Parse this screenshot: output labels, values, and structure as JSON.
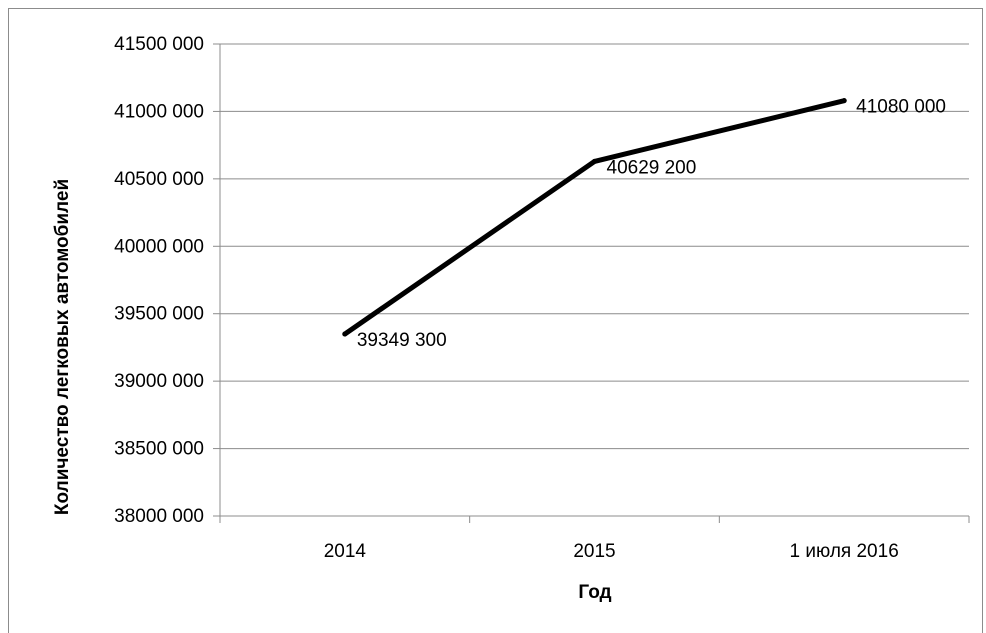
{
  "chart_data": {
    "type": "line",
    "title": "",
    "categories": [
      "2014",
      "2015",
      "1 июля 2016"
    ],
    "series": [
      {
        "values": [
          39349300,
          40629200,
          41080000
        ],
        "data_labels": [
          "39349 300",
          "40629 200",
          "41080 000"
        ]
      }
    ],
    "xlabel": "Год",
    "ylabel": "Количество легковых автомобилей",
    "ylim": [
      38000000,
      41500000
    ],
    "y_ticks": [
      38000000,
      38500000,
      39000000,
      39500000,
      40000000,
      40500000,
      41000000,
      41500000
    ],
    "y_tick_labels": [
      "38000 000",
      "38500 000",
      "39000 000",
      "39500 000",
      "40000 000",
      "40500 000",
      "41000 000",
      "41500 000"
    ],
    "grid": true,
    "legend": "none",
    "colors": {
      "line": "#000000",
      "grid": "#8c8c8c",
      "axis": "#8c8c8c"
    }
  }
}
